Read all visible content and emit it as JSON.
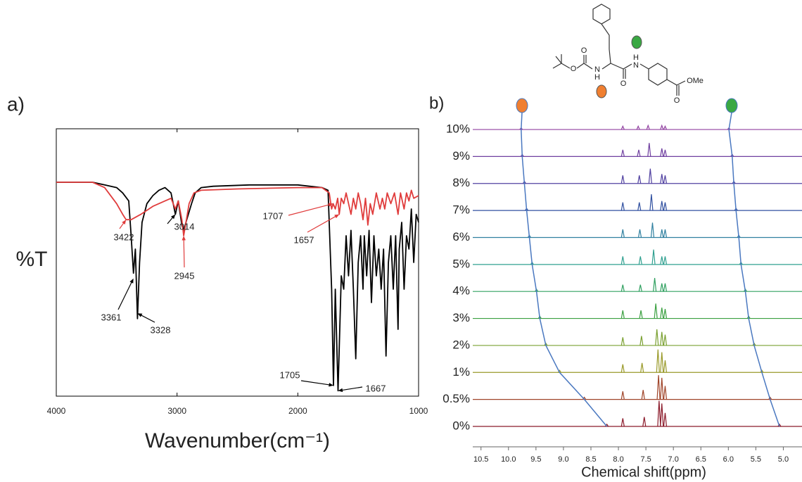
{
  "chart_data": [
    {
      "type": "line",
      "panel_label": "a)",
      "xlabel": "Wavenumber(cm⁻¹)",
      "ylabel": "%T",
      "xlim": [
        4000,
        1000
      ],
      "ylim": [
        0,
        100
      ],
      "xticks": [
        4000,
        3000,
        2000,
        1000
      ],
      "series": [
        {
          "color": "#000000",
          "x": [
            4000,
            3700,
            3600,
            3500,
            3450,
            3400,
            3380,
            3361,
            3345,
            3328,
            3310,
            3290,
            3250,
            3200,
            3150,
            3100,
            3050,
            3014,
            2990,
            2960,
            2945,
            2920,
            2880,
            2850,
            2800,
            2700,
            2400,
            2000,
            1800,
            1750,
            1720,
            1705,
            1690,
            1667,
            1640,
            1620,
            1600,
            1580,
            1560,
            1540,
            1520,
            1500,
            1480,
            1460,
            1450,
            1430,
            1410,
            1390,
            1370,
            1350,
            1330,
            1310,
            1290,
            1270,
            1250,
            1230,
            1210,
            1190,
            1170,
            1160,
            1140,
            1120,
            1100,
            1080,
            1060,
            1040,
            1020,
            1000
          ],
          "values": [
            80,
            80,
            79,
            78,
            76,
            73,
            60,
            46,
            55,
            29,
            50,
            65,
            72,
            75,
            77,
            78,
            76,
            68,
            73,
            64,
            62,
            66,
            72,
            76,
            78,
            78.5,
            79,
            79,
            78,
            77,
            40,
            4,
            40,
            2,
            45,
            40,
            60,
            45,
            62,
            40,
            14,
            50,
            60,
            40,
            60,
            45,
            62,
            35,
            60,
            45,
            55,
            40,
            55,
            15,
            50,
            60,
            40,
            60,
            25,
            55,
            65,
            40,
            60,
            55,
            70,
            50,
            68,
            65
          ]
        },
        {
          "color": "#e03c3c",
          "x": [
            4000,
            3700,
            3600,
            3500,
            3450,
            3422,
            3380,
            3300,
            3200,
            3100,
            3050,
            3014,
            2990,
            2960,
            2945,
            2930,
            2900,
            2860,
            2800,
            2500,
            2000,
            1800,
            1740,
            1720,
            1707,
            1690,
            1670,
            1657,
            1640,
            1620,
            1600,
            1560,
            1540,
            1520,
            1500,
            1480,
            1460,
            1440,
            1420,
            1400,
            1380,
            1350,
            1320,
            1300,
            1280,
            1260,
            1230,
            1200,
            1170,
            1150,
            1120,
            1100,
            1080,
            1060,
            1040,
            1000
          ],
          "values": [
            80,
            80,
            78,
            72,
            68,
            66,
            66,
            68,
            71,
            73,
            74,
            70,
            73,
            66,
            60,
            64,
            72,
            76,
            77,
            77.5,
            78,
            78,
            76,
            70,
            72,
            70,
            74,
            68,
            74,
            72,
            76,
            68,
            74,
            70,
            76,
            72,
            66,
            74,
            64,
            72,
            68,
            76,
            70,
            74,
            70,
            76,
            72,
            76,
            68,
            76,
            70,
            76,
            73,
            77,
            74,
            75
          ]
        }
      ],
      "annotations": [
        {
          "x": 3422,
          "y": 66,
          "color": "#e03c3c"
        },
        {
          "x": 3361,
          "y": 44,
          "color": "#000000"
        },
        {
          "x": 3328,
          "y": 31,
          "color": "#000000"
        },
        {
          "x": 3014,
          "y": 68,
          "color": "#000000"
        },
        {
          "x": 2945,
          "y": 60,
          "color": "#e03c3c"
        },
        {
          "x": 1707,
          "y": 72,
          "color": "#e03c3c"
        },
        {
          "x": 1657,
          "y": 68,
          "color": "#e03c3c"
        },
        {
          "x": 1705,
          "y": 4,
          "color": "#000000"
        },
        {
          "x": 1667,
          "y": 2,
          "color": "#000000"
        }
      ]
    },
    {
      "type": "stacked-peaks",
      "panel_label": "b)",
      "xlabel": "Chemical shift(ppm)",
      "xlim": [
        10.65,
        4.66
      ],
      "xticks": [
        10.5,
        {
          "value": 10,
          "label": "10.0"
        },
        9.5,
        {
          "value": 9,
          "label": "9.0"
        },
        8.5,
        {
          "value": 8,
          "label": "8.0"
        },
        7.5,
        {
          "value": 7,
          "label": "7.0"
        },
        6.5,
        {
          "value": 6,
          "label": "6.0"
        },
        5.5,
        {
          "value": 5,
          "label": "5.0"
        }
      ],
      "track_color": "#4a78c0",
      "traces": [
        {
          "label": "0%",
          "color": "#8b1a2a",
          "peaks": [
            8.21,
            7.92,
            7.53,
            7.26,
            7.21,
            7.15,
            5.07
          ],
          "heights": [
            0.08,
            0.3,
            0.35,
            0.95,
            0.85,
            0.5,
            0.08
          ]
        },
        {
          "label": "0.5%",
          "color": "#a0452a",
          "peaks": [
            8.62,
            7.92,
            7.55,
            7.27,
            7.21,
            7.15,
            5.24
          ],
          "heights": [
            0.08,
            0.3,
            0.35,
            0.9,
            0.8,
            0.5,
            0.08
          ]
        },
        {
          "label": "1%",
          "color": "#9a9a2a",
          "peaks": [
            9.07,
            7.92,
            7.57,
            7.28,
            7.21,
            7.15,
            5.39
          ],
          "heights": [
            0.08,
            0.3,
            0.35,
            0.85,
            0.75,
            0.45,
            0.08
          ]
        },
        {
          "label": "2%",
          "color": "#7aa030",
          "peaks": [
            9.32,
            7.92,
            7.58,
            7.3,
            7.21,
            7.15,
            5.53
          ],
          "heights": [
            0.08,
            0.3,
            0.35,
            0.6,
            0.5,
            0.4,
            0.08
          ]
        },
        {
          "label": "3%",
          "color": "#3aa040",
          "peaks": [
            9.43,
            7.92,
            7.59,
            7.32,
            7.21,
            7.15,
            5.63
          ],
          "heights": [
            0.08,
            0.3,
            0.3,
            0.55,
            0.4,
            0.35,
            0.08
          ]
        },
        {
          "label": "4%",
          "color": "#30a060",
          "peaks": [
            9.49,
            7.92,
            7.6,
            7.34,
            7.21,
            7.15,
            5.69
          ],
          "heights": [
            0.08,
            0.25,
            0.25,
            0.5,
            0.3,
            0.3,
            0.08
          ]
        },
        {
          "label": "5%",
          "color": "#30a090",
          "peaks": [
            9.57,
            7.92,
            7.6,
            7.36,
            7.21,
            7.15,
            5.77
          ],
          "heights": [
            0.08,
            0.3,
            0.3,
            0.55,
            0.3,
            0.3,
            0.08
          ]
        },
        {
          "label": "6%",
          "color": "#3080a0",
          "peaks": [
            9.62,
            7.92,
            7.61,
            7.38,
            7.21,
            7.15,
            5.81
          ],
          "heights": [
            0.08,
            0.3,
            0.3,
            0.55,
            0.3,
            0.3,
            0.08
          ]
        },
        {
          "label": "7%",
          "color": "#3050a0",
          "peaks": [
            9.67,
            7.92,
            7.62,
            7.4,
            7.21,
            7.15,
            5.86
          ],
          "heights": [
            0.08,
            0.3,
            0.3,
            0.6,
            0.35,
            0.3,
            0.08
          ]
        },
        {
          "label": "8%",
          "color": "#5040a0",
          "peaks": [
            9.71,
            7.92,
            7.62,
            7.42,
            7.21,
            7.15,
            5.9
          ],
          "heights": [
            0.08,
            0.3,
            0.3,
            0.55,
            0.35,
            0.3,
            0.08
          ]
        },
        {
          "label": "9%",
          "color": "#7040a0",
          "peaks": [
            9.75,
            7.92,
            7.63,
            7.44,
            7.21,
            7.15,
            5.93
          ],
          "heights": [
            0.08,
            0.25,
            0.25,
            0.5,
            0.3,
            0.25,
            0.08
          ]
        },
        {
          "label": "10%",
          "color": "#9040a0",
          "peaks": [
            9.77,
            7.92,
            7.64,
            7.46,
            7.21,
            7.15,
            5.99
          ],
          "heights": [
            0.06,
            0.12,
            0.12,
            0.15,
            0.15,
            0.12,
            0.06
          ]
        }
      ]
    }
  ],
  "molecule": {
    "atoms": [
      "O",
      "O",
      "N",
      "H",
      "O",
      "N",
      "H",
      "O",
      "OMe"
    ]
  }
}
